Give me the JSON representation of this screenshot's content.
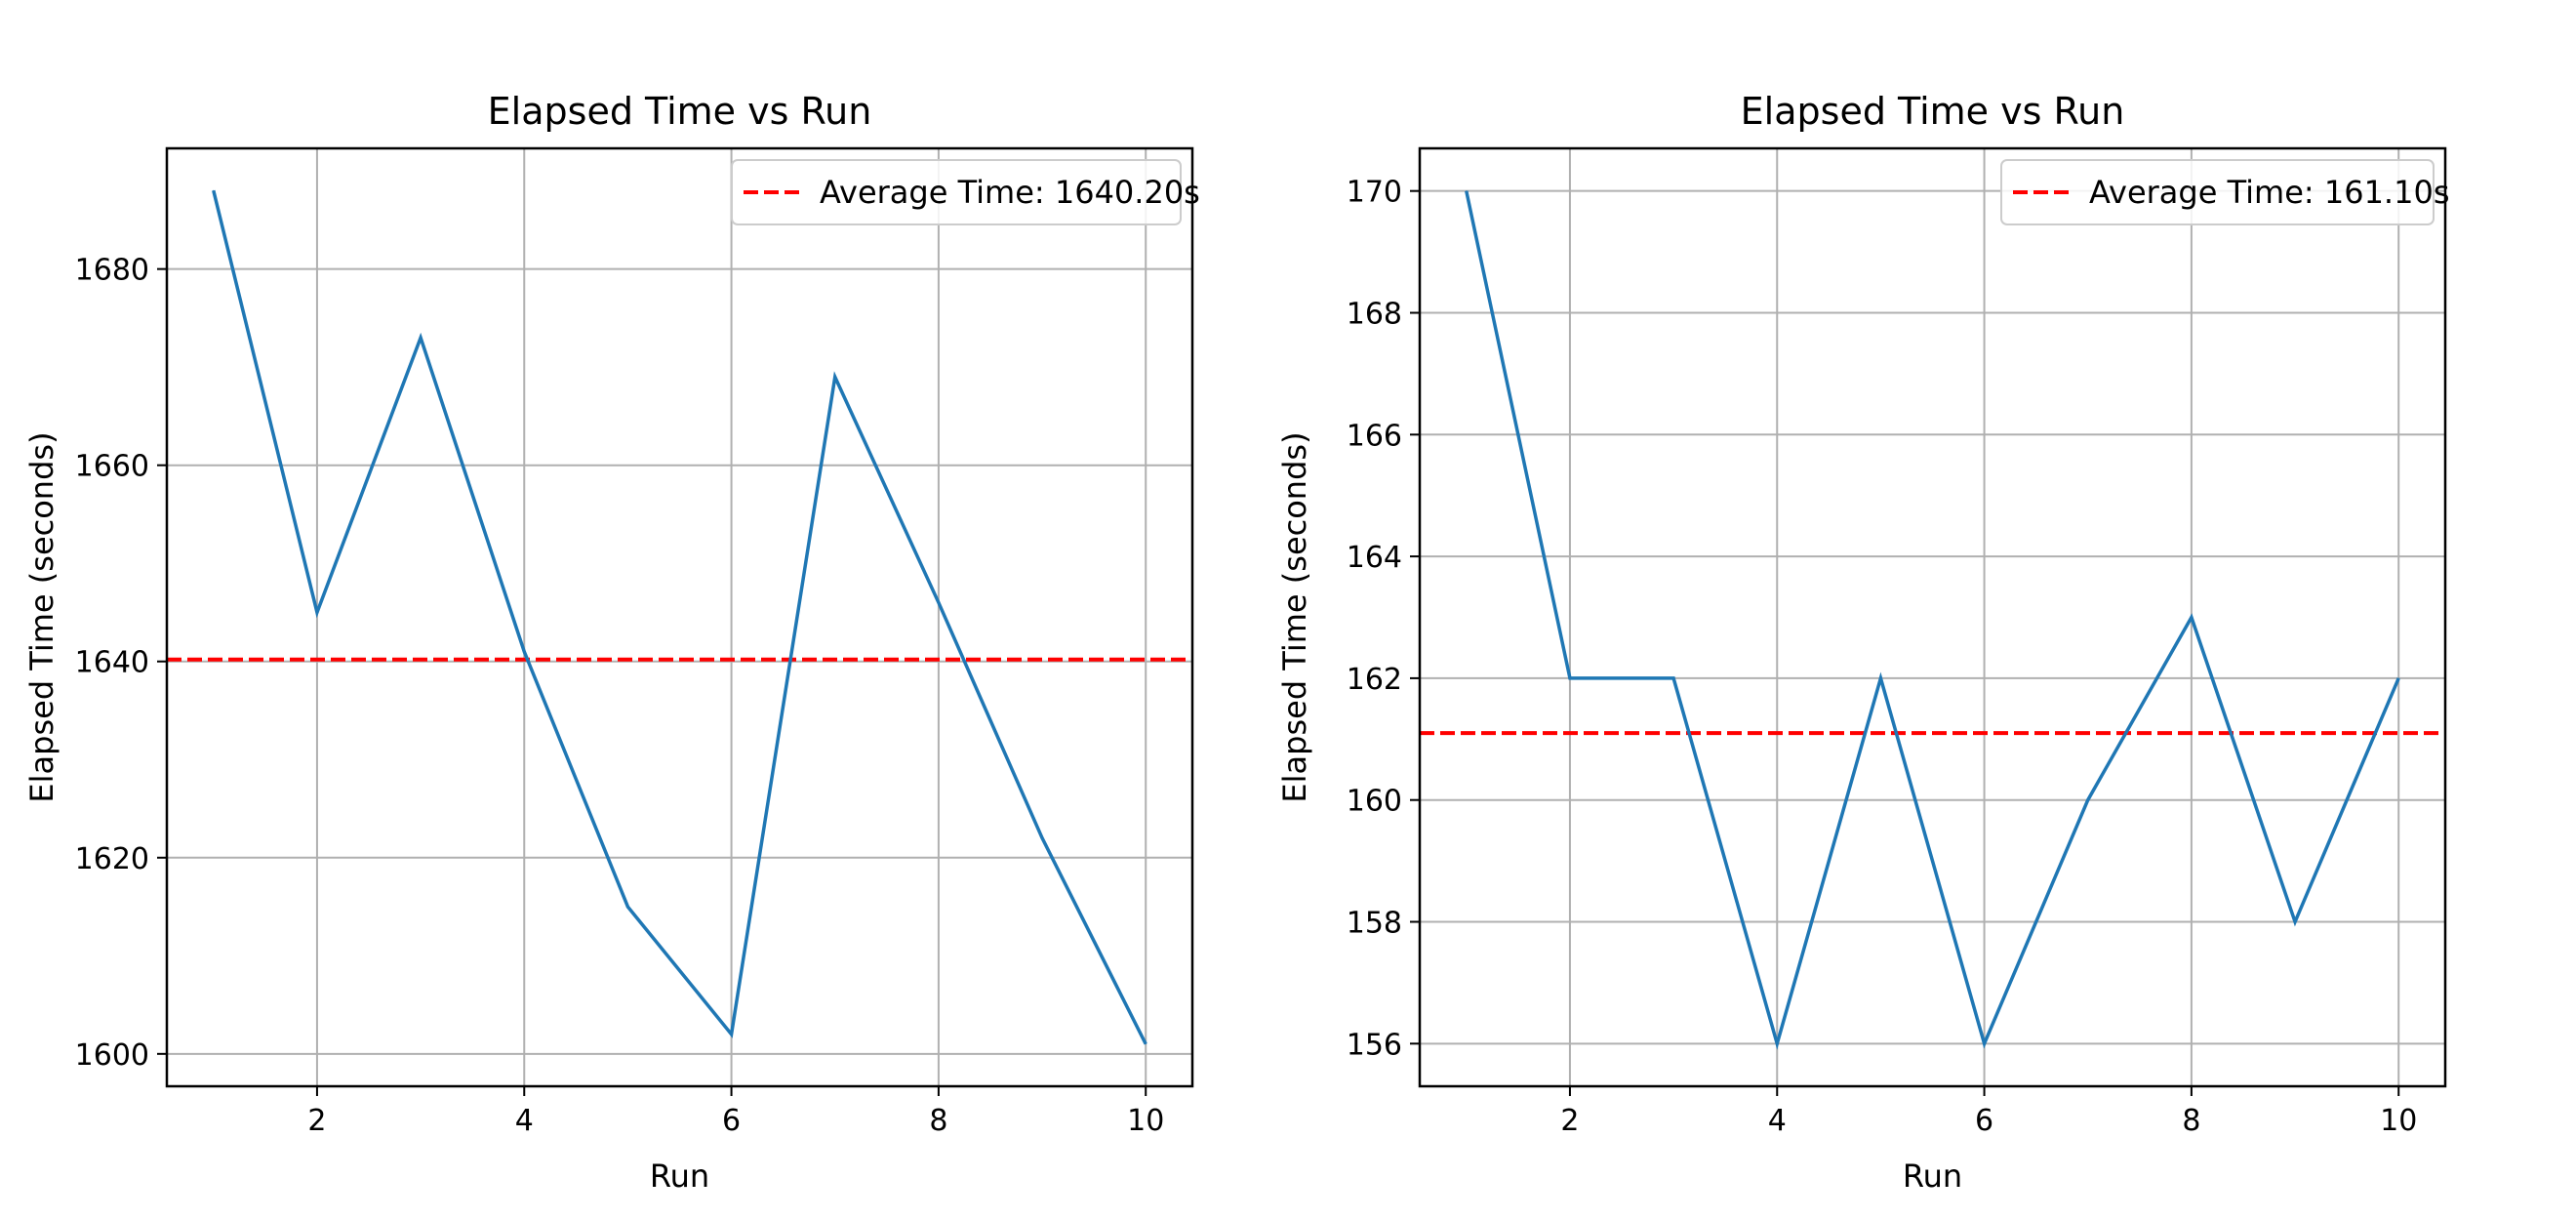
{
  "chart_data": [
    {
      "type": "line",
      "title": "Elapsed Time vs Run",
      "xlabel": "Run",
      "ylabel": "Elapsed Time (seconds)",
      "x": [
        1,
        2,
        3,
        4,
        5,
        6,
        7,
        8,
        9,
        10
      ],
      "series": [
        {
          "name": "",
          "values": [
            1688,
            1645,
            1673,
            1641,
            1615,
            1602,
            1669,
            1646,
            1622,
            1601
          ],
          "color": "#1f77b4"
        }
      ],
      "average": {
        "label": "Average Time: 1640.20s",
        "value": 1640.2,
        "color": "#ff0000"
      },
      "xlim": [
        0.55,
        10.45
      ],
      "ylim": [
        1596.7,
        1692.3
      ],
      "xticks": [
        2,
        4,
        6,
        8,
        10
      ],
      "yticks": [
        1600,
        1620,
        1640,
        1660,
        1680
      ],
      "grid": true,
      "legend_position": "top-right"
    },
    {
      "type": "line",
      "title": "Elapsed Time vs Run",
      "xlabel": "Run",
      "ylabel": "Elapsed Time (seconds)",
      "x": [
        1,
        2,
        3,
        4,
        5,
        6,
        7,
        8,
        9,
        10
      ],
      "series": [
        {
          "name": "",
          "values": [
            170,
            162,
            162,
            156,
            162,
            156,
            160,
            163,
            158,
            162
          ],
          "color": "#1f77b4"
        }
      ],
      "average": {
        "label": "Average Time: 161.10s",
        "value": 161.1,
        "color": "#ff0000"
      },
      "xlim": [
        0.55,
        10.45
      ],
      "ylim": [
        155.3,
        170.7
      ],
      "xticks": [
        2,
        4,
        6,
        8,
        10
      ],
      "yticks": [
        156,
        158,
        160,
        162,
        164,
        166,
        168,
        170
      ],
      "grid": true,
      "legend_position": "top-right"
    }
  ]
}
